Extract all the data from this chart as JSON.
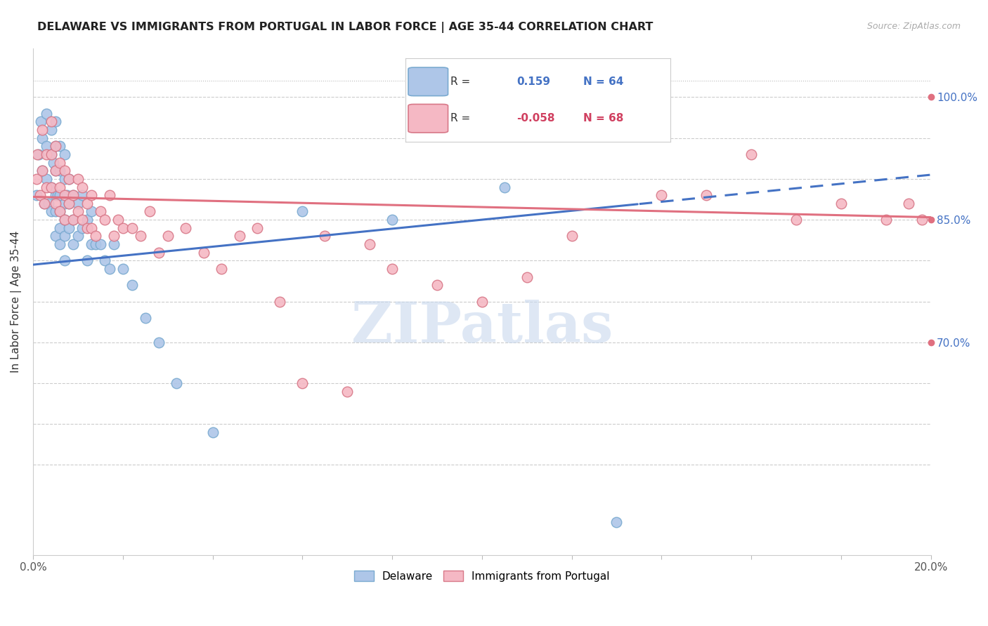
{
  "title": "DELAWARE VS IMMIGRANTS FROM PORTUGAL IN LABOR FORCE | AGE 35-44 CORRELATION CHART",
  "source": "Source: ZipAtlas.com",
  "ylabel": "In Labor Force | Age 35-44",
  "r_delaware": 0.159,
  "n_delaware": 64,
  "r_portugal": -0.058,
  "n_portugal": 68,
  "xlim": [
    0.0,
    0.2
  ],
  "ylim": [
    0.44,
    1.06
  ],
  "watermark": "ZIPatlas",
  "blue_color": "#aec6e8",
  "pink_color": "#f5b8c4",
  "blue_line_color": "#4472c4",
  "pink_line_color": "#e07080",
  "blue_edge": "#7aaad0",
  "pink_edge": "#d87888",
  "delaware_x": [
    0.0008,
    0.0012,
    0.0018,
    0.002,
    0.002,
    0.0025,
    0.003,
    0.003,
    0.003,
    0.0035,
    0.004,
    0.004,
    0.004,
    0.004,
    0.0045,
    0.005,
    0.005,
    0.005,
    0.005,
    0.005,
    0.005,
    0.0055,
    0.006,
    0.006,
    0.006,
    0.006,
    0.006,
    0.006,
    0.007,
    0.007,
    0.007,
    0.007,
    0.007,
    0.007,
    0.0075,
    0.008,
    0.008,
    0.008,
    0.009,
    0.009,
    0.009,
    0.01,
    0.01,
    0.011,
    0.011,
    0.012,
    0.012,
    0.013,
    0.013,
    0.014,
    0.015,
    0.016,
    0.017,
    0.018,
    0.02,
    0.022,
    0.025,
    0.028,
    0.032,
    0.04,
    0.06,
    0.08,
    0.105,
    0.13
  ],
  "delaware_y": [
    0.88,
    0.93,
    0.97,
    0.95,
    0.91,
    0.87,
    0.98,
    0.94,
    0.9,
    0.87,
    0.96,
    0.93,
    0.89,
    0.86,
    0.92,
    0.97,
    0.94,
    0.91,
    0.88,
    0.86,
    0.83,
    0.88,
    0.94,
    0.91,
    0.88,
    0.86,
    0.84,
    0.82,
    0.93,
    0.9,
    0.87,
    0.85,
    0.83,
    0.8,
    0.88,
    0.9,
    0.87,
    0.84,
    0.88,
    0.85,
    0.82,
    0.87,
    0.83,
    0.88,
    0.84,
    0.85,
    0.8,
    0.86,
    0.82,
    0.82,
    0.82,
    0.8,
    0.79,
    0.82,
    0.79,
    0.77,
    0.73,
    0.7,
    0.65,
    0.59,
    0.86,
    0.85,
    0.89,
    0.48
  ],
  "portugal_x": [
    0.0008,
    0.001,
    0.0015,
    0.002,
    0.002,
    0.0025,
    0.003,
    0.003,
    0.004,
    0.004,
    0.004,
    0.005,
    0.005,
    0.005,
    0.006,
    0.006,
    0.006,
    0.007,
    0.007,
    0.007,
    0.008,
    0.008,
    0.009,
    0.009,
    0.01,
    0.01,
    0.011,
    0.011,
    0.012,
    0.012,
    0.013,
    0.013,
    0.014,
    0.015,
    0.016,
    0.017,
    0.018,
    0.019,
    0.02,
    0.022,
    0.024,
    0.026,
    0.028,
    0.03,
    0.034,
    0.038,
    0.042,
    0.046,
    0.05,
    0.055,
    0.06,
    0.065,
    0.07,
    0.075,
    0.08,
    0.09,
    0.1,
    0.11,
    0.12,
    0.13,
    0.14,
    0.15,
    0.16,
    0.17,
    0.18,
    0.19,
    0.195,
    0.198
  ],
  "portugal_y": [
    0.9,
    0.93,
    0.88,
    0.96,
    0.91,
    0.87,
    0.93,
    0.89,
    0.97,
    0.93,
    0.89,
    0.94,
    0.91,
    0.87,
    0.92,
    0.89,
    0.86,
    0.91,
    0.88,
    0.85,
    0.9,
    0.87,
    0.88,
    0.85,
    0.9,
    0.86,
    0.89,
    0.85,
    0.87,
    0.84,
    0.88,
    0.84,
    0.83,
    0.86,
    0.85,
    0.88,
    0.83,
    0.85,
    0.84,
    0.84,
    0.83,
    0.86,
    0.81,
    0.83,
    0.84,
    0.81,
    0.79,
    0.83,
    0.84,
    0.75,
    0.65,
    0.83,
    0.64,
    0.82,
    0.79,
    0.77,
    0.75,
    0.78,
    0.83,
    0.99,
    0.88,
    0.88,
    0.93,
    0.85,
    0.87,
    0.85,
    0.87,
    0.85
  ]
}
